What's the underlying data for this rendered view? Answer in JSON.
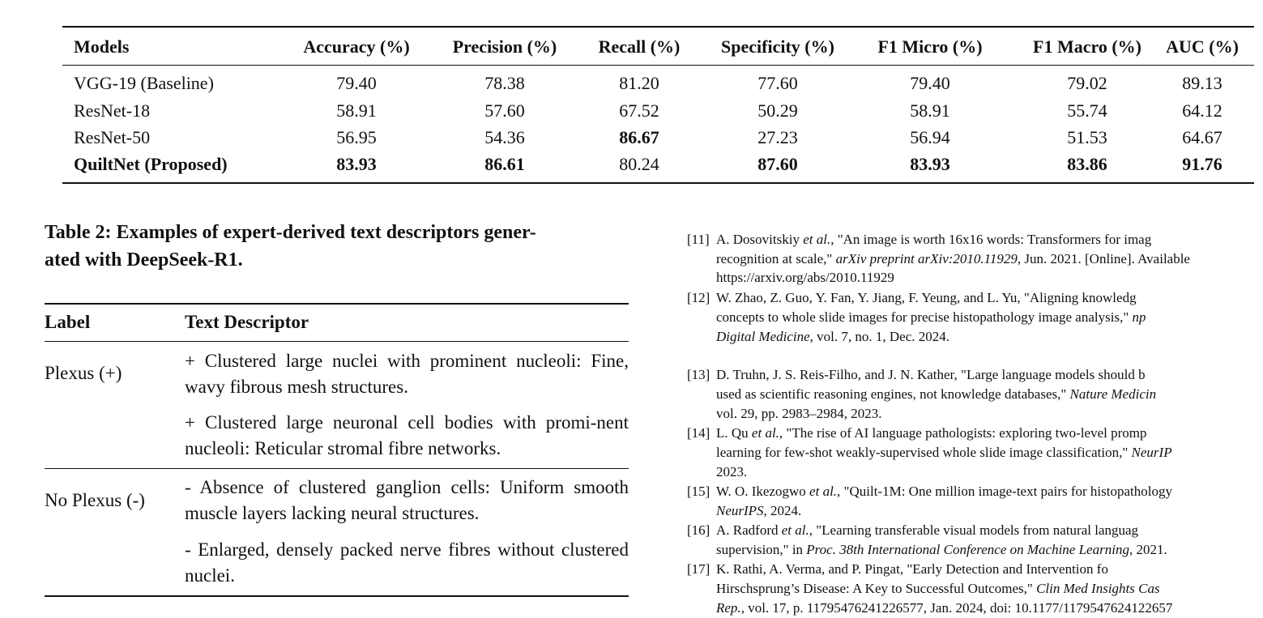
{
  "results_table": {
    "columns": [
      "Models",
      "Accuracy (%)",
      "Precision (%)",
      "Recall (%)",
      "Specificity (%)",
      "F1 Micro (%)",
      "F1 Macro (%)",
      "AUC (%)"
    ],
    "rows": [
      [
        "VGG-19 (Baseline)",
        "79.40",
        "78.38",
        "81.20",
        "77.60",
        "79.40",
        "79.02",
        "89.13"
      ],
      [
        "ResNet-18",
        "58.91",
        "57.60",
        "67.52",
        "50.29",
        "58.91",
        "55.74",
        "64.12"
      ],
      [
        "ResNet-50",
        "56.95",
        "54.36",
        {
          "text": "86.67",
          "bold": true
        },
        "27.23",
        "56.94",
        "51.53",
        "64.67"
      ],
      [
        {
          "text": "QuiltNet (Proposed)",
          "bold": true
        },
        {
          "text": "83.93",
          "bold": true
        },
        {
          "text": "86.61",
          "bold": true
        },
        "80.24",
        {
          "text": "87.60",
          "bold": true
        },
        {
          "text": "83.93",
          "bold": true
        },
        {
          "text": "83.86",
          "bold": true
        },
        {
          "text": "91.76",
          "bold": true
        }
      ]
    ]
  },
  "descriptor_table": {
    "caption": "Table 2: Examples of expert-derived text descriptors gener-ated with DeepSeek-R1.",
    "caption_lines": [
      "Table 2: Examples of expert-derived text descriptors gener-",
      "ated with DeepSeek-R1."
    ],
    "columns": [
      "Label",
      "Text Descriptor"
    ],
    "rows": [
      {
        "label": "Plexus (+)",
        "descriptors": [
          "+ Clustered large nuclei with prominent nucleoli: Fine, wavy fibrous mesh structures.",
          "+ Clustered large neuronal cell bodies with promi-nent nucleoli: Reticular stromal fibre networks."
        ]
      },
      {
        "label": "No Plexus (-)",
        "descriptors": [
          "- Absence of clustered ganglion cells: Uniform smooth muscle layers lacking neural structures.",
          "- Enlarged, densely packed nerve fibres without clustered nuclei."
        ]
      }
    ]
  },
  "references": [
    {
      "number": "[11]",
      "lines": [
        [
          "A. Dosovitskiy ",
          {
            "text": "et al.",
            "style": "italic"
          },
          ", \"An image is worth 16x16 words: Transformers for imag"
        ],
        [
          "recognition at scale,\" ",
          {
            "text": "arXiv preprint arXiv:2010.11929",
            "style": "italic"
          },
          ", Jun. 2021. [Online]. Available"
        ],
        [
          "https://arxiv.org/abs/2010.11929"
        ]
      ]
    },
    {
      "number": "[12]",
      "lines": [
        [
          "W. Zhao, Z. Guo, Y. Fan, Y. Jiang, F. Yeung, and L. Yu, \"Aligning knowledg"
        ],
        [
          "concepts to whole slide images for precise histopathology image analysis,\" ",
          {
            "text": "np",
            "style": "italic"
          }
        ],
        [
          {
            "text": "Digital Medicine",
            "style": "italic"
          },
          ", vol. 7, no. 1, Dec. 2024."
        ]
      ]
    },
    {
      "number": "[13]",
      "lines": [
        [
          "D. Truhn, J. S. Reis-Filho, and J. N. Kather, \"Large language models should b"
        ],
        [
          "used as scientific reasoning engines, not knowledge databases,\" ",
          {
            "text": "Nature Medicin",
            "style": "italic"
          }
        ],
        [
          "vol. 29, pp. 2983–2984, 2023."
        ]
      ]
    },
    {
      "number": "[14]",
      "lines": [
        [
          "L. Qu ",
          {
            "text": "et al.",
            "style": "italic"
          },
          ", \"The rise of AI language pathologists: exploring two-level promp"
        ],
        [
          "learning for few-shot weakly-supervised whole slide image classification,\" ",
          {
            "text": "NeurIP",
            "style": "italic"
          }
        ],
        [
          "2023."
        ]
      ]
    },
    {
      "number": "[15]",
      "lines": [
        [
          "W. O. Ikezogwo ",
          {
            "text": "et al.",
            "style": "italic"
          },
          ", \"Quilt-1M: One million image-text pairs for histopathology"
        ],
        [
          {
            "text": "NeurIPS",
            "style": "italic"
          },
          ", 2024."
        ]
      ]
    },
    {
      "number": "[16]",
      "lines": [
        [
          "A. Radford ",
          {
            "text": "et al.",
            "style": "italic"
          },
          ", \"Learning transferable visual models from natural languag"
        ],
        [
          "supervision,\" in ",
          {
            "text": "Proc. 38th International Conference on Machine Learning",
            "style": "italic"
          },
          ", 2021."
        ]
      ]
    },
    {
      "number": "[17]",
      "lines": [
        [
          "K. Rathi, A. Verma, and P. Pingat, \"Early Detection and Intervention fo"
        ],
        [
          "Hirschsprung’s Disease: A Key to Successful Outcomes,\" ",
          {
            "text": "Clin Med Insights Cas",
            "style": "italic"
          }
        ],
        [
          {
            "text": "Rep.",
            "style": "italic"
          },
          ", vol. 17, p. 11795476241226577, Jan. 2024, doi: 10.1177/1179547624122657"
        ]
      ]
    }
  ]
}
